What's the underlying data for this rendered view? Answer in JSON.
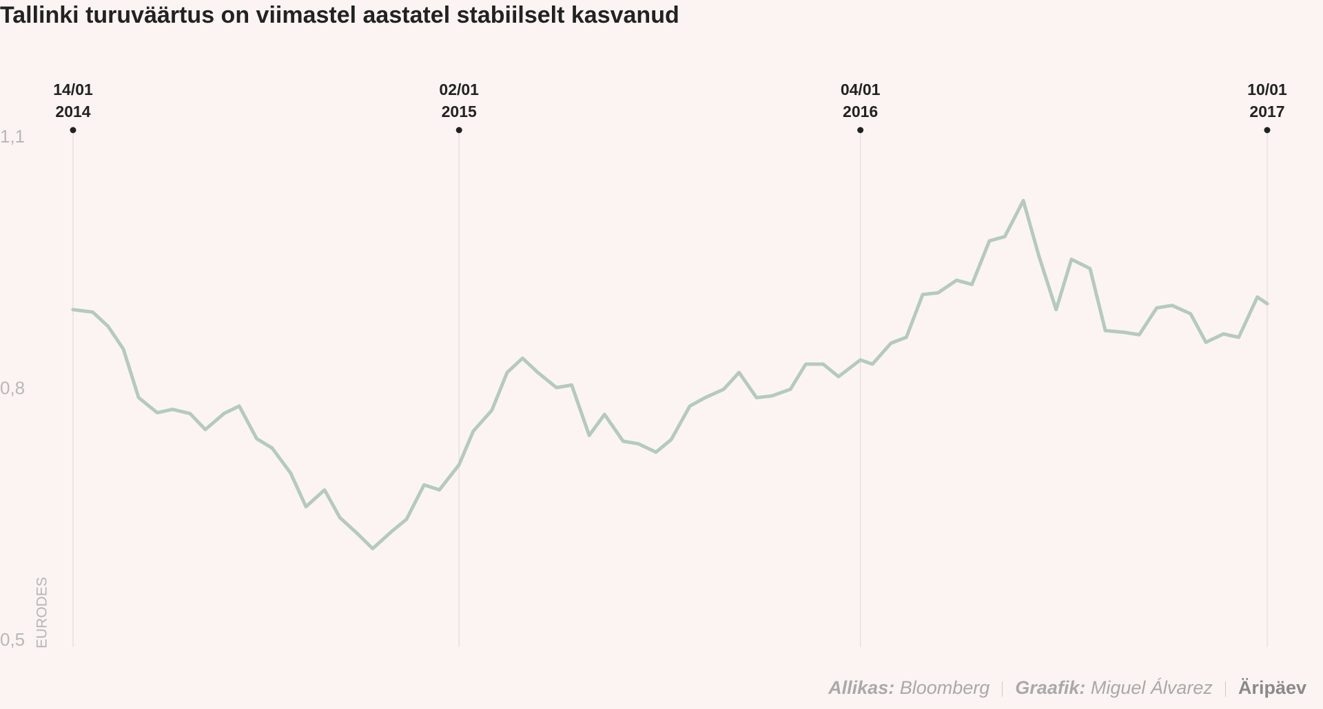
{
  "chart_data": {
    "type": "line",
    "title": "Tallinki turuväärtus on viimastel aastatel stabiilselt kasvanud",
    "y_label": "EURODES",
    "color": "#b3cbbd",
    "x": [
      "2014-01-14",
      "2014-02-01",
      "2014-02-15",
      "2014-03-01",
      "2014-03-15",
      "2014-04-01",
      "2014-04-15",
      "2014-05-01",
      "2014-05-15",
      "2014-06-01",
      "2014-06-15",
      "2014-07-01",
      "2014-07-15",
      "2014-08-01",
      "2014-08-15",
      "2014-09-01",
      "2014-09-15",
      "2014-10-01",
      "2014-10-15",
      "2014-11-01",
      "2014-11-15",
      "2014-12-01",
      "2014-12-15",
      "2015-01-02",
      "2015-01-15",
      "2015-02-01",
      "2015-02-15",
      "2015-03-01",
      "2015-03-15",
      "2015-04-01",
      "2015-04-15",
      "2015-05-01",
      "2015-05-15",
      "2015-06-01",
      "2015-06-15",
      "2015-07-01",
      "2015-07-15",
      "2015-08-01",
      "2015-08-15",
      "2015-09-01",
      "2015-09-15",
      "2015-10-01",
      "2015-10-15",
      "2015-11-01",
      "2015-11-15",
      "2015-12-01",
      "2015-12-15",
      "2016-01-04",
      "2016-01-15",
      "2016-02-01",
      "2016-02-15",
      "2016-03-01",
      "2016-03-15",
      "2016-04-01",
      "2016-04-15",
      "2016-05-01",
      "2016-05-15",
      "2016-06-01",
      "2016-06-15",
      "2016-07-01",
      "2016-07-15",
      "2016-08-01",
      "2016-08-15",
      "2016-09-01",
      "2016-09-15",
      "2016-10-01",
      "2016-10-15",
      "2016-11-01",
      "2016-11-15",
      "2016-12-01",
      "2016-12-15",
      "2017-01-01",
      "2017-01-10"
    ],
    "values": [
      0.895,
      0.892,
      0.875,
      0.848,
      0.79,
      0.772,
      0.776,
      0.771,
      0.752,
      0.771,
      0.78,
      0.741,
      0.73,
      0.7,
      0.66,
      0.68,
      0.647,
      0.628,
      0.61,
      0.63,
      0.645,
      0.686,
      0.68,
      0.71,
      0.75,
      0.775,
      0.82,
      0.837,
      0.82,
      0.802,
      0.805,
      0.745,
      0.77,
      0.738,
      0.735,
      0.725,
      0.74,
      0.78,
      0.79,
      0.8,
      0.82,
      0.79,
      0.792,
      0.8,
      0.83,
      0.83,
      0.815,
      0.835,
      0.83,
      0.855,
      0.862,
      0.913,
      0.915,
      0.93,
      0.925,
      0.977,
      0.982,
      1.025,
      0.96,
      0.895,
      0.955,
      0.944,
      0.87,
      0.868,
      0.865,
      0.897,
      0.9,
      0.89,
      0.856,
      0.866,
      0.862,
      0.91,
      0.902
    ],
    "xlim": [
      "2014-01-14",
      "2017-01-10"
    ],
    "xticks": [
      {
        "value": "2014-01-14",
        "label": [
          "14/01",
          "2014"
        ]
      },
      {
        "value": "2015-01-02",
        "label": [
          "02/01",
          "2015"
        ]
      },
      {
        "value": "2016-01-04",
        "label": [
          "04/01",
          "2016"
        ]
      },
      {
        "value": "2017-01-10",
        "label": [
          "10/01",
          "2017"
        ]
      }
    ],
    "ylim": [
      0.5,
      1.1
    ],
    "yticks": [
      {
        "value": 1.1,
        "label": "1,1"
      },
      {
        "value": 0.8,
        "label": "0,8"
      },
      {
        "value": 0.5,
        "label": "0,5"
      }
    ]
  },
  "footer": {
    "source_label": "Allikas:",
    "source": "Bloomberg",
    "graphic_label": "Graafik:",
    "graphic": "Miguel Álvarez",
    "brand": "Äripäev"
  }
}
